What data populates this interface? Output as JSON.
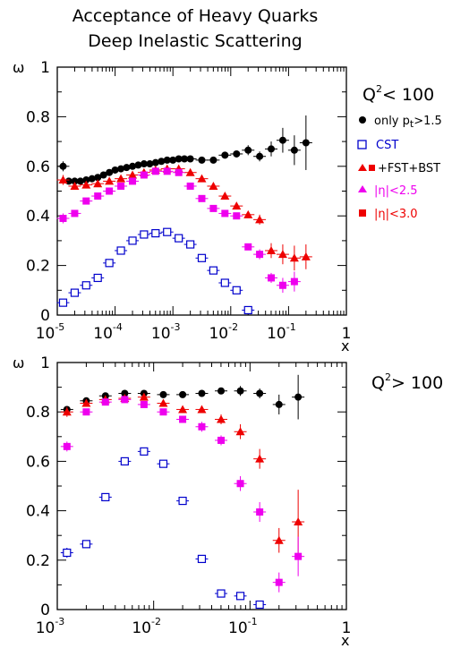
{
  "title_lines": [
    "Acceptance of Heavy Quarks",
    "Deep Inelastic Scattering"
  ],
  "colors": {
    "black": "#000000",
    "blue": "#0000cc",
    "red": "#ee0000",
    "magenta": "#ee00ee"
  },
  "legend": [
    {
      "text": "only",
      "text_sub": "t",
      "text_end": ">1.5",
      "marker": "circle",
      "color": "#000000"
    },
    {
      "text": "CST",
      "marker": "open-square",
      "color": "#0000cc"
    },
    {
      "text": "+FST+BST",
      "marker": "triangle+square",
      "color": "#ee0000"
    },
    {
      "text": "|η|<2.5",
      "marker": "triangle",
      "color": "#ee00ee"
    },
    {
      "text": "|η|<3.0",
      "marker": "square",
      "color": "#ee0000"
    }
  ],
  "chart_data": [
    {
      "type": "scatter",
      "label": "Q² < 100",
      "label_text": "Q",
      "label_sup": "2",
      "label_rest": "< 100",
      "xlabel": "x",
      "ylabel": "ω",
      "xscale": "log",
      "xlim": [
        1e-05,
        1
      ],
      "ylim": [
        0,
        1
      ],
      "xticks": [
        {
          "base": "10",
          "exp": "-5"
        },
        {
          "base": "10",
          "exp": "-4"
        },
        {
          "base": "10",
          "exp": "-3"
        },
        {
          "base": "10",
          "exp": "-2"
        },
        {
          "base": "10",
          "exp": "-1"
        },
        {
          "base": "1",
          "exp": ""
        }
      ],
      "yticks": [
        "0",
        "0.2",
        "0.4",
        "0.6",
        "0.8",
        "1"
      ],
      "series": [
        {
          "name": "only pt>1.5",
          "marker": "circle",
          "color": "#000000",
          "x": [
            1.26e-05,
            1.58e-05,
            2e-05,
            2.51e-05,
            3.16e-05,
            3.98e-05,
            5.01e-05,
            6.31e-05,
            7.94e-05,
            0.0001,
            0.000126,
            0.000158,
            0.0002,
            0.000251,
            0.000316,
            0.000398,
            0.000501,
            0.000631,
            0.000794,
            0.001,
            0.00126,
            0.00158,
            0.002,
            0.00316,
            0.00501,
            0.00794,
            0.0126,
            0.02,
            0.0316,
            0.0501,
            0.0794,
            0.126,
            0.2
          ],
          "y": [
            0.6,
            0.54,
            0.54,
            0.54,
            0.545,
            0.55,
            0.555,
            0.565,
            0.575,
            0.585,
            0.59,
            0.595,
            0.6,
            0.605,
            0.61,
            0.61,
            0.615,
            0.62,
            0.625,
            0.625,
            0.63,
            0.63,
            0.63,
            0.625,
            0.625,
            0.645,
            0.65,
            0.665,
            0.64,
            0.67,
            0.705,
            0.665,
            0.695
          ],
          "err": [
            0.02,
            0.01,
            0.01,
            0.01,
            0.01,
            0.01,
            0.01,
            0.01,
            0.01,
            0.01,
            0.01,
            0.01,
            0.01,
            0.01,
            0.01,
            0.01,
            0.01,
            0.01,
            0.01,
            0.01,
            0.01,
            0.01,
            0.01,
            0.01,
            0.01,
            0.01,
            0.01,
            0.02,
            0.02,
            0.03,
            0.05,
            0.06,
            0.11
          ]
        },
        {
          "name": "CST",
          "marker": "open-square",
          "color": "#0000cc",
          "x": [
            1.26e-05,
            2e-05,
            3.16e-05,
            5.01e-05,
            7.94e-05,
            0.000126,
            0.0002,
            0.000316,
            0.000501,
            0.000794,
            0.00126,
            0.002,
            0.00316,
            0.00501,
            0.00794,
            0.0126,
            0.02
          ],
          "y": [
            0.05,
            0.09,
            0.12,
            0.15,
            0.21,
            0.26,
            0.3,
            0.325,
            0.33,
            0.335,
            0.31,
            0.285,
            0.23,
            0.18,
            0.13,
            0.1,
            0.02
          ],
          "err": [
            0.01,
            0.01,
            0.01,
            0.01,
            0.01,
            0.01,
            0.01,
            0.01,
            0.01,
            0.01,
            0.01,
            0.01,
            0.01,
            0.01,
            0.01,
            0.01,
            0.01
          ]
        },
        {
          "name": "+FST+BST |η|<3.0",
          "marker": "triangle",
          "color": "#ee0000",
          "x": [
            1.26e-05,
            2e-05,
            3.16e-05,
            5.01e-05,
            7.94e-05,
            0.000126,
            0.0002,
            0.000316,
            0.000501,
            0.000794,
            0.00126,
            0.002,
            0.00316,
            0.00501,
            0.00794,
            0.0126,
            0.02,
            0.0316,
            0.0501,
            0.0794,
            0.126,
            0.2
          ],
          "y": [
            0.545,
            0.52,
            0.525,
            0.53,
            0.54,
            0.55,
            0.565,
            0.575,
            0.585,
            0.59,
            0.59,
            0.575,
            0.55,
            0.52,
            0.48,
            0.44,
            0.405,
            0.385,
            0.26,
            0.245,
            0.23,
            0.235
          ],
          "err": [
            0.02,
            0.01,
            0.01,
            0.01,
            0.01,
            0.01,
            0.01,
            0.01,
            0.01,
            0.01,
            0.01,
            0.01,
            0.01,
            0.01,
            0.01,
            0.01,
            0.01,
            0.02,
            0.03,
            0.04,
            0.05,
            0.05
          ]
        },
        {
          "name": "+FST+BST |η|<2.5",
          "marker": "square",
          "color": "#ee00ee",
          "x": [
            1.26e-05,
            2e-05,
            3.16e-05,
            5.01e-05,
            7.94e-05,
            0.000126,
            0.0002,
            0.000316,
            0.000501,
            0.000794,
            0.00126,
            0.002,
            0.00316,
            0.00501,
            0.00794,
            0.0126,
            0.02,
            0.0316,
            0.0501,
            0.0794,
            0.126
          ],
          "y": [
            0.39,
            0.41,
            0.46,
            0.48,
            0.5,
            0.52,
            0.54,
            0.565,
            0.58,
            0.58,
            0.575,
            0.52,
            0.47,
            0.43,
            0.41,
            0.4,
            0.275,
            0.245,
            0.15,
            0.12,
            0.135
          ],
          "err": [
            0.02,
            0.01,
            0.01,
            0.01,
            0.01,
            0.01,
            0.01,
            0.01,
            0.01,
            0.01,
            0.01,
            0.01,
            0.01,
            0.01,
            0.01,
            0.01,
            0.01,
            0.02,
            0.02,
            0.03,
            0.04
          ]
        }
      ]
    },
    {
      "type": "scatter",
      "label": "Q² > 100",
      "label_text": "Q",
      "label_sup": "2",
      "label_rest": "> 100",
      "xlabel": "x",
      "ylabel": "ω",
      "xscale": "log",
      "xlim": [
        0.001,
        1
      ],
      "ylim": [
        0,
        1
      ],
      "xticks": [
        {
          "base": "10",
          "exp": "-3"
        },
        {
          "base": "10",
          "exp": "-2"
        },
        {
          "base": "10",
          "exp": "-1"
        },
        {
          "base": "1",
          "exp": ""
        }
      ],
      "yticks": [
        "0",
        "0.2",
        "0.4",
        "0.6",
        "0.8",
        "1"
      ],
      "series": [
        {
          "name": "only pt>1.5",
          "marker": "circle",
          "color": "#000000",
          "x": [
            0.00126,
            0.002,
            0.00316,
            0.00501,
            0.00794,
            0.0126,
            0.02,
            0.0316,
            0.0501,
            0.0794,
            0.126,
            0.2,
            0.316
          ],
          "y": [
            0.81,
            0.845,
            0.865,
            0.875,
            0.875,
            0.87,
            0.87,
            0.875,
            0.885,
            0.885,
            0.875,
            0.83,
            0.86
          ],
          "err": [
            0.01,
            0.01,
            0.01,
            0.01,
            0.01,
            0.01,
            0.01,
            0.01,
            0.01,
            0.02,
            0.02,
            0.04,
            0.09
          ]
        },
        {
          "name": "CST",
          "marker": "open-square",
          "color": "#0000cc",
          "x": [
            0.00126,
            0.002,
            0.00316,
            0.00501,
            0.00794,
            0.0126,
            0.02,
            0.0316,
            0.0501,
            0.0794,
            0.126
          ],
          "y": [
            0.23,
            0.265,
            0.455,
            0.6,
            0.64,
            0.59,
            0.44,
            0.205,
            0.065,
            0.055,
            0.02
          ],
          "err": [
            0.02,
            0.01,
            0.01,
            0.01,
            0.01,
            0.01,
            0.01,
            0.01,
            0.01,
            0.01,
            0.01
          ]
        },
        {
          "name": "+FST+BST |η|<3.0",
          "marker": "triangle",
          "color": "#ee0000",
          "x": [
            0.00126,
            0.002,
            0.00316,
            0.00501,
            0.00794,
            0.0126,
            0.02,
            0.0316,
            0.0501,
            0.0794,
            0.126,
            0.2,
            0.316
          ],
          "y": [
            0.8,
            0.835,
            0.85,
            0.855,
            0.86,
            0.835,
            0.81,
            0.81,
            0.77,
            0.72,
            0.61,
            0.28,
            0.355
          ],
          "err": [
            0.02,
            0.01,
            0.01,
            0.01,
            0.01,
            0.01,
            0.01,
            0.01,
            0.02,
            0.03,
            0.04,
            0.05,
            0.13
          ]
        },
        {
          "name": "+FST+BST |η|<2.5",
          "marker": "square",
          "color": "#ee00ee",
          "x": [
            0.00126,
            0.002,
            0.00316,
            0.00501,
            0.00794,
            0.0126,
            0.02,
            0.0316,
            0.0501,
            0.0794,
            0.126,
            0.2,
            0.316
          ],
          "y": [
            0.66,
            0.8,
            0.84,
            0.85,
            0.83,
            0.8,
            0.77,
            0.74,
            0.685,
            0.51,
            0.395,
            0.11,
            0.215
          ],
          "err": [
            0.02,
            0.01,
            0.01,
            0.01,
            0.01,
            0.01,
            0.01,
            0.02,
            0.02,
            0.03,
            0.04,
            0.04,
            0.08
          ]
        }
      ]
    }
  ]
}
